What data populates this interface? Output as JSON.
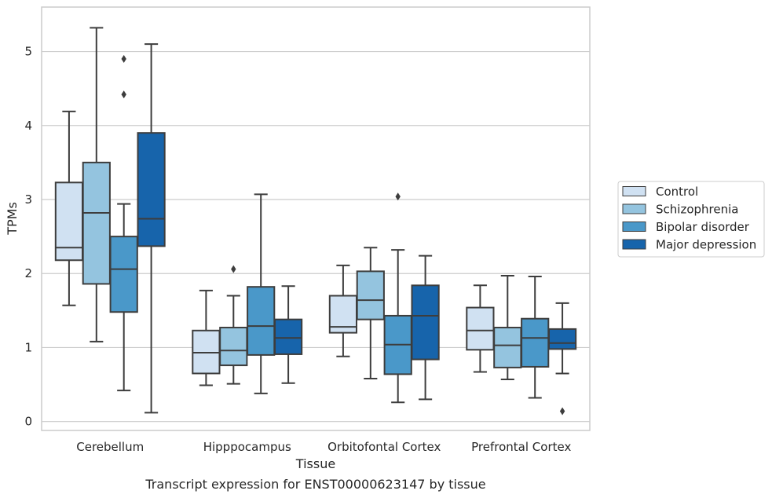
{
  "chart_data": {
    "type": "box",
    "caption": "Transcript expression for ENST00000623147 by tissue",
    "xlabel": "Tissue",
    "ylabel": "TPMs",
    "ylim": [
      -0.12,
      5.6
    ],
    "yticks": [
      0,
      1,
      2,
      3,
      4,
      5
    ],
    "grid": "horizontal",
    "legend_position": "right",
    "categories": [
      "Cerebellum",
      "Hipppocampus",
      "Orbitofontal Cortex",
      "Prefrontal Cortex"
    ],
    "series": [
      {
        "name": "Control",
        "color": "#d0e1f2",
        "boxes": [
          {
            "whislo": 1.57,
            "q1": 2.18,
            "med": 2.35,
            "q3": 3.23,
            "whishi": 4.19,
            "fliers": []
          },
          {
            "whislo": 0.49,
            "q1": 0.65,
            "med": 0.93,
            "q3": 1.23,
            "whishi": 1.77,
            "fliers": []
          },
          {
            "whislo": 0.88,
            "q1": 1.2,
            "med": 1.28,
            "q3": 1.7,
            "whishi": 2.11,
            "fliers": []
          },
          {
            "whislo": 0.67,
            "q1": 0.97,
            "med": 1.23,
            "q3": 1.54,
            "whishi": 1.84,
            "fliers": []
          }
        ]
      },
      {
        "name": "Schizophrenia",
        "color": "#94c4df",
        "boxes": [
          {
            "whislo": 1.08,
            "q1": 1.86,
            "med": 2.82,
            "q3": 3.5,
            "whishi": 5.32,
            "fliers": []
          },
          {
            "whislo": 0.51,
            "q1": 0.76,
            "med": 0.96,
            "q3": 1.27,
            "whishi": 1.7,
            "fliers": [
              2.06
            ]
          },
          {
            "whislo": 0.58,
            "q1": 1.38,
            "med": 1.64,
            "q3": 2.03,
            "whishi": 2.35,
            "fliers": []
          },
          {
            "whislo": 0.57,
            "q1": 0.73,
            "med": 1.03,
            "q3": 1.27,
            "whishi": 1.97,
            "fliers": []
          }
        ]
      },
      {
        "name": "Bipolar disorder",
        "color": "#4a98c9",
        "boxes": [
          {
            "whislo": 0.42,
            "q1": 1.48,
            "med": 2.06,
            "q3": 2.5,
            "whishi": 2.94,
            "fliers": [
              4.42,
              4.9
            ]
          },
          {
            "whislo": 0.38,
            "q1": 0.9,
            "med": 1.29,
            "q3": 1.82,
            "whishi": 3.07,
            "fliers": []
          },
          {
            "whislo": 0.26,
            "q1": 0.64,
            "med": 1.04,
            "q3": 1.43,
            "whishi": 2.32,
            "fliers": [
              3.04
            ]
          },
          {
            "whislo": 0.32,
            "q1": 0.74,
            "med": 1.13,
            "q3": 1.39,
            "whishi": 1.96,
            "fliers": []
          }
        ]
      },
      {
        "name": "Major depression",
        "color": "#1764ab",
        "boxes": [
          {
            "whislo": 0.12,
            "q1": 2.37,
            "med": 2.74,
            "q3": 3.9,
            "whishi": 5.1,
            "fliers": []
          },
          {
            "whislo": 0.52,
            "q1": 0.91,
            "med": 1.13,
            "q3": 1.38,
            "whishi": 1.83,
            "fliers": []
          },
          {
            "whislo": 0.3,
            "q1": 0.84,
            "med": 1.43,
            "q3": 1.84,
            "whishi": 2.24,
            "fliers": []
          },
          {
            "whislo": 0.65,
            "q1": 0.98,
            "med": 1.06,
            "q3": 1.25,
            "whishi": 1.6,
            "fliers": [
              0.14
            ]
          }
        ]
      }
    ]
  }
}
